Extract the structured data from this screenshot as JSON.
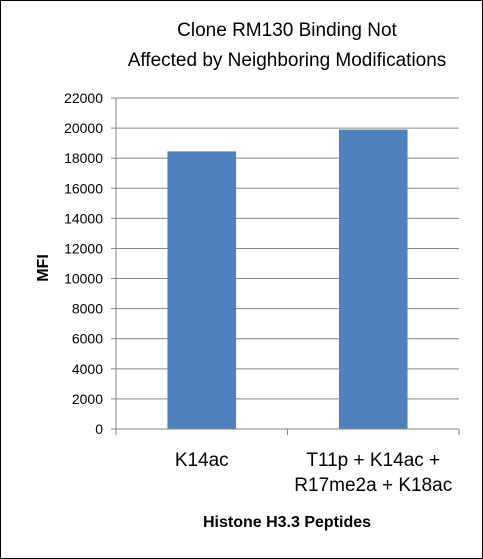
{
  "chart_data": {
    "type": "bar",
    "title_lines": [
      "Clone RM130 Binding Not",
      "Affected by Neighboring Modifications"
    ],
    "xlabel": "Histone H3.3 Peptides",
    "ylabel": "MFI",
    "categories": [
      [
        "K14ac"
      ],
      [
        "T11p + K14ac +",
        "R17me2a + K18ac"
      ]
    ],
    "values": [
      18450,
      19900
    ],
    "ylim": [
      0,
      22000
    ],
    "yticks": [
      "0",
      "2000",
      "4000",
      "6000",
      "8000",
      "10000",
      "12000",
      "14000",
      "16000",
      "18000",
      "20000",
      "22000"
    ],
    "grid": true,
    "legend": "none",
    "bar_color": "#4F81BD",
    "grid_color": "#868686"
  }
}
